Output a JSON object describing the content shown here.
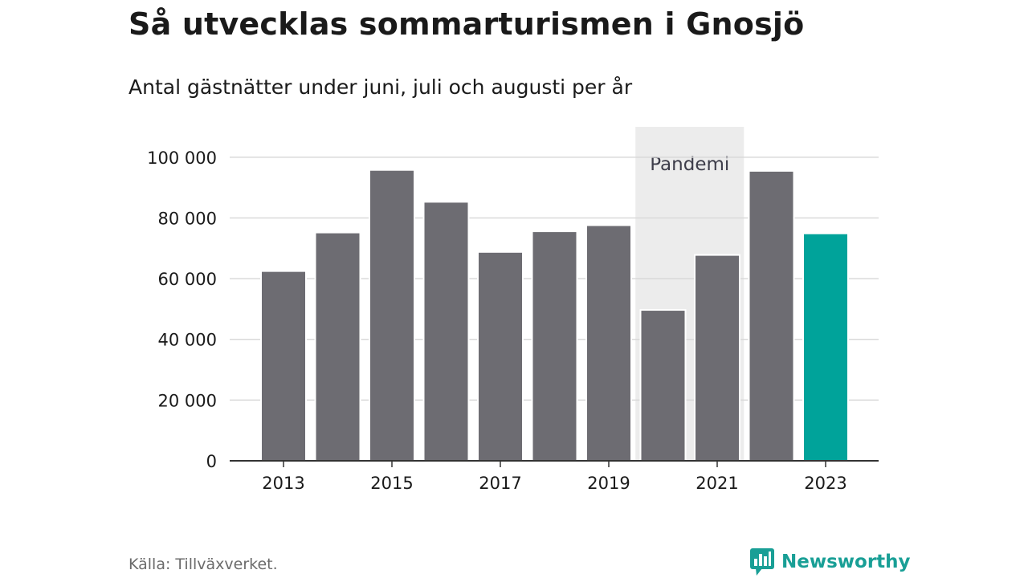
{
  "header": {
    "title": "Så utvecklas sommarturismen i Gnosjö",
    "subtitle": "Antal gästnätter under juni, juli och augusti per år"
  },
  "footer": {
    "source": "Källa: Tillväxverket.",
    "brand_name": "Newsworthy",
    "brand_icon": "newsworthy-logo-icon"
  },
  "colors": {
    "bar": "#6d6c72",
    "highlight": "#00a39a",
    "pandemic_band": "#ececec",
    "grid": "#d9d9d9",
    "axis": "#333333",
    "brand": "#199f96"
  },
  "chart_data": {
    "type": "bar",
    "categories": [
      "2013",
      "2014",
      "2015",
      "2016",
      "2017",
      "2018",
      "2019",
      "2020",
      "2021",
      "2022",
      "2023"
    ],
    "values": [
      62500,
      75200,
      95800,
      85300,
      68800,
      75600,
      77600,
      49700,
      67800,
      95500,
      74900
    ],
    "highlight_category": "2023",
    "x_tick_labels": [
      "2013",
      "2015",
      "2017",
      "2019",
      "2021",
      "2023"
    ],
    "y_ticks": [
      0,
      20000,
      40000,
      60000,
      80000,
      100000
    ],
    "y_tick_labels": [
      "0",
      "20 000",
      "40 000",
      "60 000",
      "80 000",
      "100 000"
    ],
    "ylim": [
      0,
      110000
    ],
    "grid": true,
    "annotation": {
      "label": "Pandemi",
      "categories": [
        "2020",
        "2021"
      ]
    }
  }
}
